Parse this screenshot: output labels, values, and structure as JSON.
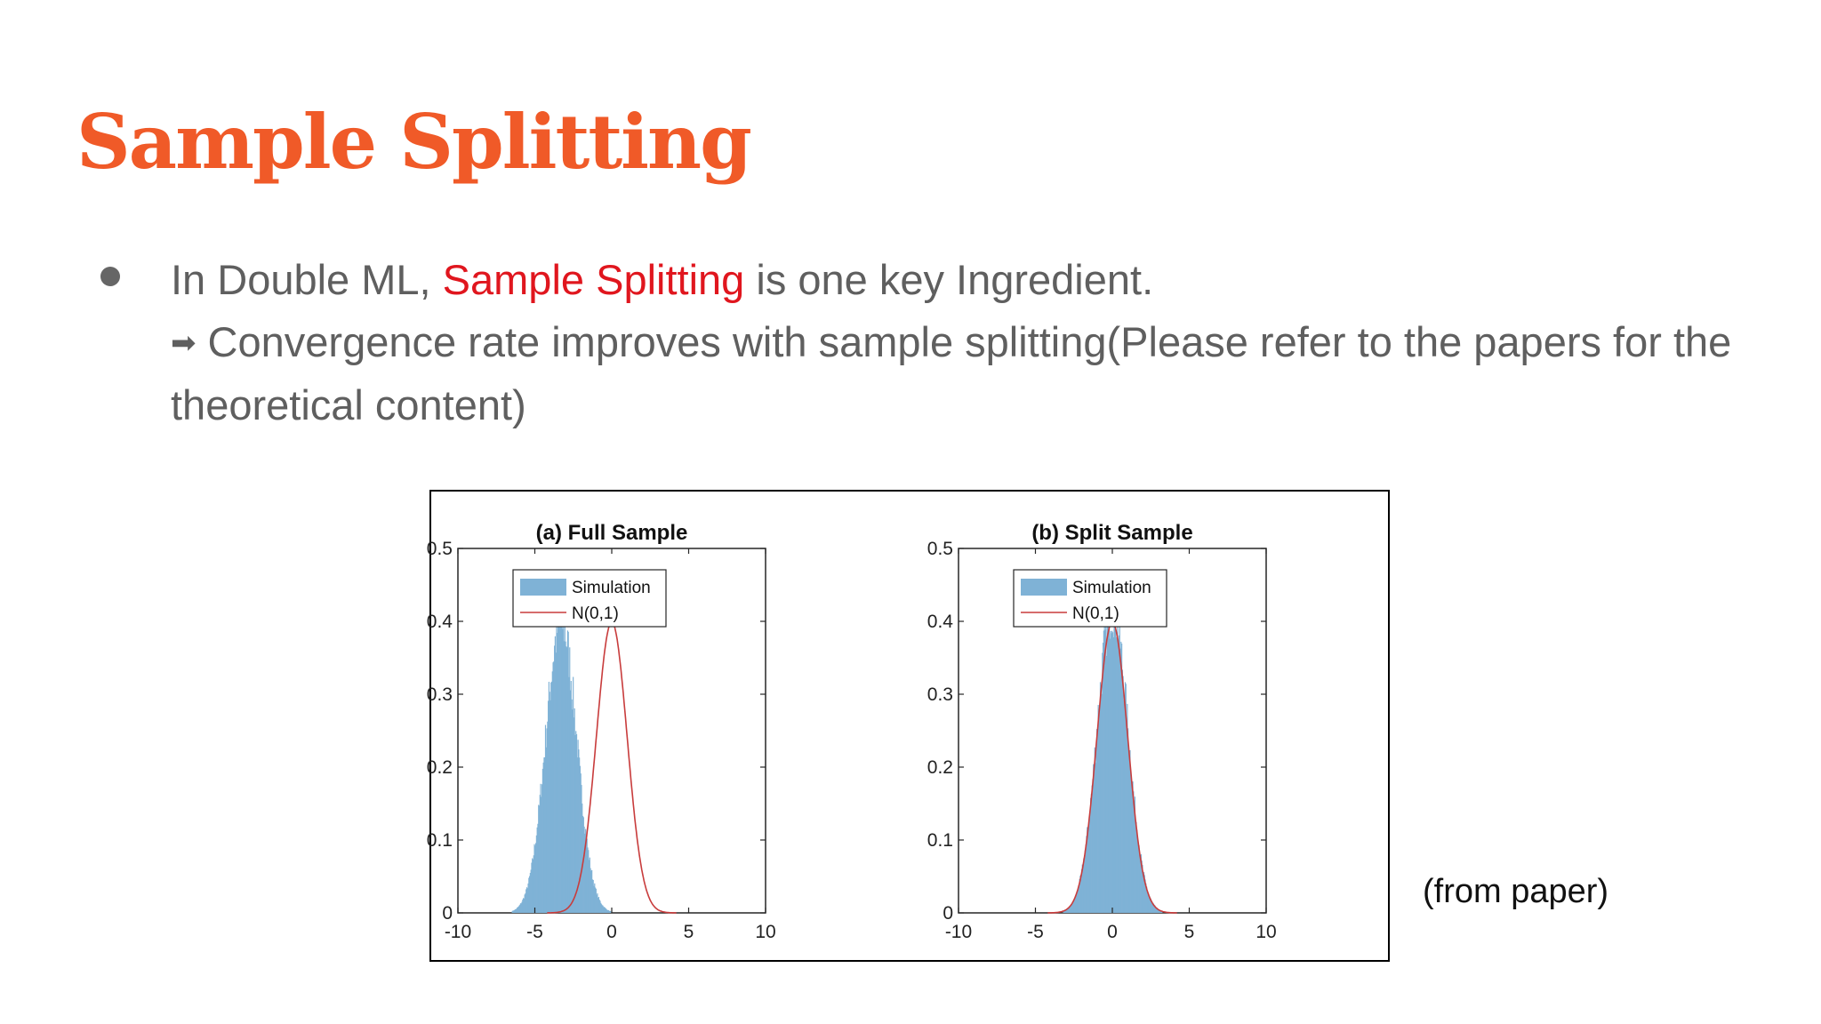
{
  "slide": {
    "title": "Sample Splitting",
    "bullet": {
      "prefix": "In Double ML, ",
      "highlight": "Sample Splitting",
      "suffix": " is one key Ingredient.",
      "arrow": "➡",
      "line2": " Convergence rate improves with sample splitting(Please refer to the papers for the theoretical content)"
    },
    "caption": "(from paper)"
  },
  "colors": {
    "title": "#f05a28",
    "highlight": "#e0161e",
    "body_text": "#5f5f5f",
    "histogram": "#7fb2d6",
    "normal_curve": "#c83c3c"
  },
  "chart_data": [
    {
      "type": "histogram",
      "title": "(a) Full Sample",
      "xlim": [
        -10,
        10
      ],
      "ylim": [
        0,
        0.5
      ],
      "xticks": [
        "-10",
        "-5",
        "0",
        "5",
        "10"
      ],
      "yticks": [
        "0",
        "0.1",
        "0.2",
        "0.3",
        "0.4",
        "0.5"
      ],
      "legend": [
        "Simulation",
        "N(0,1)"
      ],
      "legend_position": "top-left",
      "series": [
        {
          "name": "Simulation",
          "kind": "histogram",
          "mean": -3.3,
          "sd": 1.0,
          "peak_density": 0.4
        },
        {
          "name": "N(0,1)",
          "kind": "line",
          "mean": 0,
          "sd": 1
        }
      ]
    },
    {
      "type": "histogram",
      "title": "(b) Split Sample",
      "xlim": [
        -10,
        10
      ],
      "ylim": [
        0,
        0.5
      ],
      "xticks": [
        "-10",
        "-5",
        "0",
        "5",
        "10"
      ],
      "yticks": [
        "0",
        "0.1",
        "0.2",
        "0.3",
        "0.4",
        "0.5"
      ],
      "legend": [
        "Simulation",
        "N(0,1)"
      ],
      "legend_position": "top-left",
      "series": [
        {
          "name": "Simulation",
          "kind": "histogram",
          "mean": 0,
          "sd": 1.0,
          "peak_density": 0.42
        },
        {
          "name": "N(0,1)",
          "kind": "line",
          "mean": 0,
          "sd": 1
        }
      ]
    }
  ]
}
